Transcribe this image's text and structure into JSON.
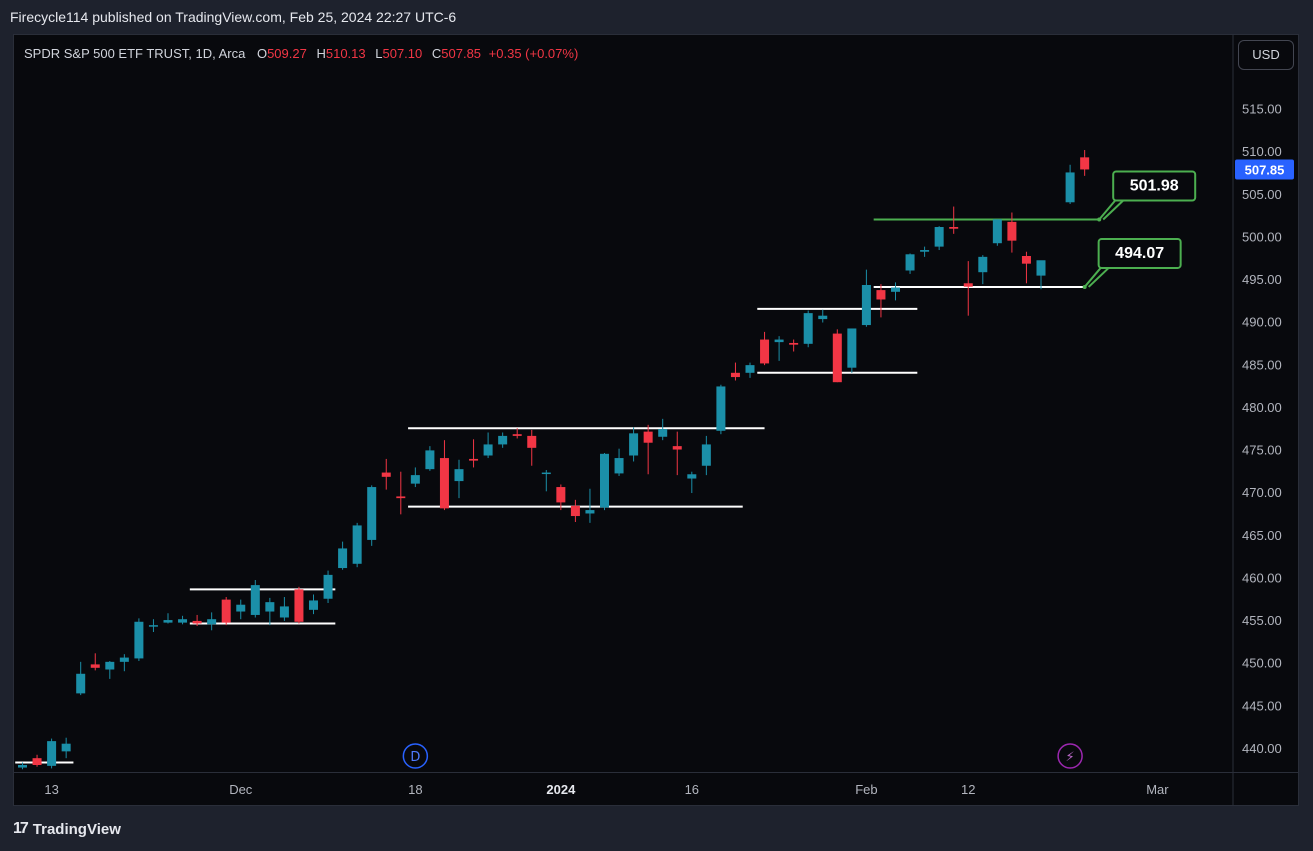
{
  "header": {
    "published": "Firecycle114 published on TradingView.com, Feb 25, 2024 22:27 UTC-6"
  },
  "legend": {
    "symbol": "SPDR S&P 500 ETF TRUST, 1D, Arca",
    "o_label": "O",
    "o_value": "509.27",
    "h_label": "H",
    "h_value": "510.13",
    "l_label": "L",
    "l_value": "507.10",
    "c_label": "C",
    "c_value": "507.85",
    "change": "+0.35 (+0.07%)"
  },
  "currency_button": "USD",
  "footer": {
    "brand": "TradingView"
  },
  "colors": {
    "up": "#1b8fa8",
    "down": "#f23645",
    "background": "#08090d",
    "price_tag": "#2962ff",
    "annotation": "#4caf50"
  },
  "chart_data": {
    "type": "candlestick",
    "title": "SPDR S&P 500 ETF TRUST, 1D, Arca",
    "y_ticks": [
      "515.00",
      "510.00",
      "505.00",
      "500.00",
      "495.00",
      "490.00",
      "485.00",
      "480.00",
      "475.00",
      "470.00",
      "465.00",
      "460.00",
      "455.00",
      "450.00",
      "445.00",
      "440.00"
    ],
    "ylim": [
      436.5,
      519.5
    ],
    "x_ticks": [
      {
        "label": "13",
        "index": 2,
        "bold": false
      },
      {
        "label": "Dec",
        "index": 15,
        "bold": false
      },
      {
        "label": "18",
        "index": 27,
        "bold": false
      },
      {
        "label": "2024",
        "index": 37,
        "bold": true
      },
      {
        "label": "16",
        "index": 46,
        "bold": false
      },
      {
        "label": "Feb",
        "index": 58,
        "bold": false
      },
      {
        "label": "12",
        "index": 65,
        "bold": false
      },
      {
        "label": "Mar",
        "index": 78,
        "bold": false
      }
    ],
    "candles": [
      {
        "o": 437.7,
        "h": 438.3,
        "l": 437.5,
        "c": 438.0
      },
      {
        "o": 438.8,
        "h": 439.2,
        "l": 437.8,
        "c": 438.0
      },
      {
        "o": 437.9,
        "h": 441.1,
        "l": 437.6,
        "c": 440.8
      },
      {
        "o": 439.6,
        "h": 441.2,
        "l": 438.8,
        "c": 440.5
      },
      {
        "o": 446.4,
        "h": 450.1,
        "l": 446.2,
        "c": 448.7
      },
      {
        "o": 449.8,
        "h": 451.1,
        "l": 449.1,
        "c": 449.4
      },
      {
        "o": 449.2,
        "h": 450.2,
        "l": 448.1,
        "c": 450.1
      },
      {
        "o": 450.1,
        "h": 451.0,
        "l": 449.0,
        "c": 450.6
      },
      {
        "o": 450.5,
        "h": 455.2,
        "l": 450.2,
        "c": 454.8
      },
      {
        "o": 454.3,
        "h": 455.1,
        "l": 453.6,
        "c": 454.4
      },
      {
        "o": 454.7,
        "h": 455.8,
        "l": 454.6,
        "c": 455.0
      },
      {
        "o": 454.7,
        "h": 455.5,
        "l": 454.5,
        "c": 455.1
      },
      {
        "o": 454.9,
        "h": 455.6,
        "l": 454.3,
        "c": 454.6
      },
      {
        "o": 454.5,
        "h": 455.9,
        "l": 453.8,
        "c": 455.1
      },
      {
        "o": 457.4,
        "h": 457.7,
        "l": 454.4,
        "c": 454.7
      },
      {
        "o": 456.0,
        "h": 457.4,
        "l": 455.1,
        "c": 456.8
      },
      {
        "o": 455.6,
        "h": 459.7,
        "l": 455.3,
        "c": 459.1
      },
      {
        "o": 456.0,
        "h": 457.6,
        "l": 454.4,
        "c": 457.1
      },
      {
        "o": 455.3,
        "h": 457.7,
        "l": 454.9,
        "c": 456.6
      },
      {
        "o": 458.6,
        "h": 458.9,
        "l": 454.6,
        "c": 454.8
      },
      {
        "o": 456.2,
        "h": 458.0,
        "l": 455.7,
        "c": 457.3
      },
      {
        "o": 457.5,
        "h": 460.8,
        "l": 457.0,
        "c": 460.3
      },
      {
        "o": 461.1,
        "h": 464.2,
        "l": 460.9,
        "c": 463.4
      },
      {
        "o": 461.6,
        "h": 466.4,
        "l": 461.2,
        "c": 466.1
      },
      {
        "o": 464.4,
        "h": 470.8,
        "l": 463.7,
        "c": 470.6
      },
      {
        "o": 472.3,
        "h": 473.9,
        "l": 470.3,
        "c": 471.8
      },
      {
        "o": 469.5,
        "h": 472.4,
        "l": 467.4,
        "c": 469.3
      },
      {
        "o": 471.0,
        "h": 472.9,
        "l": 470.6,
        "c": 472.0
      },
      {
        "o": 472.7,
        "h": 475.4,
        "l": 472.5,
        "c": 474.9
      },
      {
        "o": 474.0,
        "h": 476.1,
        "l": 467.9,
        "c": 468.1
      },
      {
        "o": 471.3,
        "h": 473.8,
        "l": 469.3,
        "c": 472.7
      },
      {
        "o": 473.9,
        "h": 476.2,
        "l": 472.9,
        "c": 473.7
      },
      {
        "o": 474.3,
        "h": 477.0,
        "l": 474.0,
        "c": 475.6
      },
      {
        "o": 475.6,
        "h": 477.0,
        "l": 475.2,
        "c": 476.6
      },
      {
        "o": 476.8,
        "h": 477.5,
        "l": 476.3,
        "c": 476.6
      },
      {
        "o": 476.6,
        "h": 477.3,
        "l": 473.1,
        "c": 475.2
      },
      {
        "o": 472.2,
        "h": 472.6,
        "l": 470.1,
        "c": 472.3
      },
      {
        "o": 470.6,
        "h": 470.9,
        "l": 467.9,
        "c": 468.8
      },
      {
        "o": 468.4,
        "h": 469.1,
        "l": 466.5,
        "c": 467.2
      },
      {
        "o": 467.5,
        "h": 470.4,
        "l": 466.4,
        "c": 467.9
      },
      {
        "o": 468.2,
        "h": 474.6,
        "l": 467.9,
        "c": 474.5
      },
      {
        "o": 472.2,
        "h": 475.1,
        "l": 471.9,
        "c": 474.0
      },
      {
        "o": 474.3,
        "h": 477.6,
        "l": 473.6,
        "c": 476.9
      },
      {
        "o": 477.1,
        "h": 477.9,
        "l": 472.1,
        "c": 475.8
      },
      {
        "o": 476.5,
        "h": 478.6,
        "l": 476.1,
        "c": 477.4
      },
      {
        "o": 475.4,
        "h": 477.1,
        "l": 472.0,
        "c": 475.0
      },
      {
        "o": 471.6,
        "h": 472.4,
        "l": 469.9,
        "c": 472.1
      },
      {
        "o": 473.1,
        "h": 476.6,
        "l": 472.0,
        "c": 475.6
      },
      {
        "o": 477.2,
        "h": 482.6,
        "l": 476.8,
        "c": 482.4
      },
      {
        "o": 484.0,
        "h": 485.2,
        "l": 483.1,
        "c": 483.5
      },
      {
        "o": 484.0,
        "h": 485.2,
        "l": 483.4,
        "c": 484.9
      },
      {
        "o": 487.9,
        "h": 488.8,
        "l": 484.9,
        "c": 485.1
      },
      {
        "o": 487.6,
        "h": 488.3,
        "l": 485.4,
        "c": 487.9
      },
      {
        "o": 487.5,
        "h": 487.9,
        "l": 486.5,
        "c": 487.3
      },
      {
        "o": 487.4,
        "h": 491.3,
        "l": 487.0,
        "c": 491.0
      },
      {
        "o": 490.3,
        "h": 491.4,
        "l": 489.9,
        "c": 490.7
      },
      {
        "o": 488.6,
        "h": 489.1,
        "l": 482.9,
        "c": 482.9
      },
      {
        "o": 484.6,
        "h": 489.2,
        "l": 484.0,
        "c": 489.2
      },
      {
        "o": 489.6,
        "h": 496.1,
        "l": 489.4,
        "c": 494.3
      },
      {
        "o": 493.7,
        "h": 494.4,
        "l": 490.5,
        "c": 492.6
      },
      {
        "o": 493.5,
        "h": 494.6,
        "l": 492.5,
        "c": 494.0
      },
      {
        "o": 496.0,
        "h": 498.0,
        "l": 495.6,
        "c": 497.9
      },
      {
        "o": 498.2,
        "h": 498.8,
        "l": 497.6,
        "c": 498.4
      },
      {
        "o": 498.8,
        "h": 501.2,
        "l": 498.4,
        "c": 501.1
      },
      {
        "o": 501.1,
        "h": 503.5,
        "l": 500.3,
        "c": 500.9
      },
      {
        "o": 494.5,
        "h": 497.1,
        "l": 490.7,
        "c": 494.1
      },
      {
        "o": 495.8,
        "h": 497.8,
        "l": 494.4,
        "c": 497.6
      },
      {
        "o": 499.2,
        "h": 502.0,
        "l": 498.9,
        "c": 502.0
      },
      {
        "o": 501.7,
        "h": 502.8,
        "l": 498.1,
        "c": 499.5
      },
      {
        "o": 497.7,
        "h": 498.2,
        "l": 494.5,
        "c": 496.8
      },
      {
        "o": 495.4,
        "h": 497.0,
        "l": 493.8,
        "c": 497.2
      },
      null,
      {
        "o": 504.0,
        "h": 508.4,
        "l": 503.8,
        "c": 507.5
      },
      {
        "o": 509.27,
        "h": 510.13,
        "l": 507.1,
        "c": 507.85
      }
    ],
    "last_price": "507.85",
    "levels": [
      {
        "price": 438.3,
        "from": -0.5,
        "to": 3.5,
        "color": "#ffffff"
      },
      {
        "price": 454.6,
        "from": 11.5,
        "to": 21.5,
        "color": "#ffffff"
      },
      {
        "price": 458.6,
        "from": 11.5,
        "to": 21.5,
        "color": "#ffffff"
      },
      {
        "price": 468.3,
        "from": 26.5,
        "to": 49.5,
        "color": "#ffffff"
      },
      {
        "price": 477.5,
        "from": 26.5,
        "to": 51.0,
        "color": "#ffffff"
      },
      {
        "price": 484.0,
        "from": 50.5,
        "to": 61.5,
        "color": "#ffffff"
      },
      {
        "price": 491.5,
        "from": 50.5,
        "to": 61.5,
        "color": "#ffffff"
      },
      {
        "price": 494.07,
        "from": 58.5,
        "to": 73.0,
        "color": "#ffffff"
      },
      {
        "price": 501.98,
        "from": 58.5,
        "to": 74.0,
        "color": "#4caf50"
      }
    ],
    "callouts": [
      {
        "text": "501.98",
        "price": 501.98,
        "anchor_index": 74.0
      },
      {
        "text": "494.07",
        "price": 494.07,
        "anchor_index": 73.0
      }
    ],
    "markers": [
      {
        "type": "dividend",
        "label": "D",
        "index": 27
      },
      {
        "type": "earnings",
        "label": "⚡",
        "index": 72
      }
    ]
  }
}
